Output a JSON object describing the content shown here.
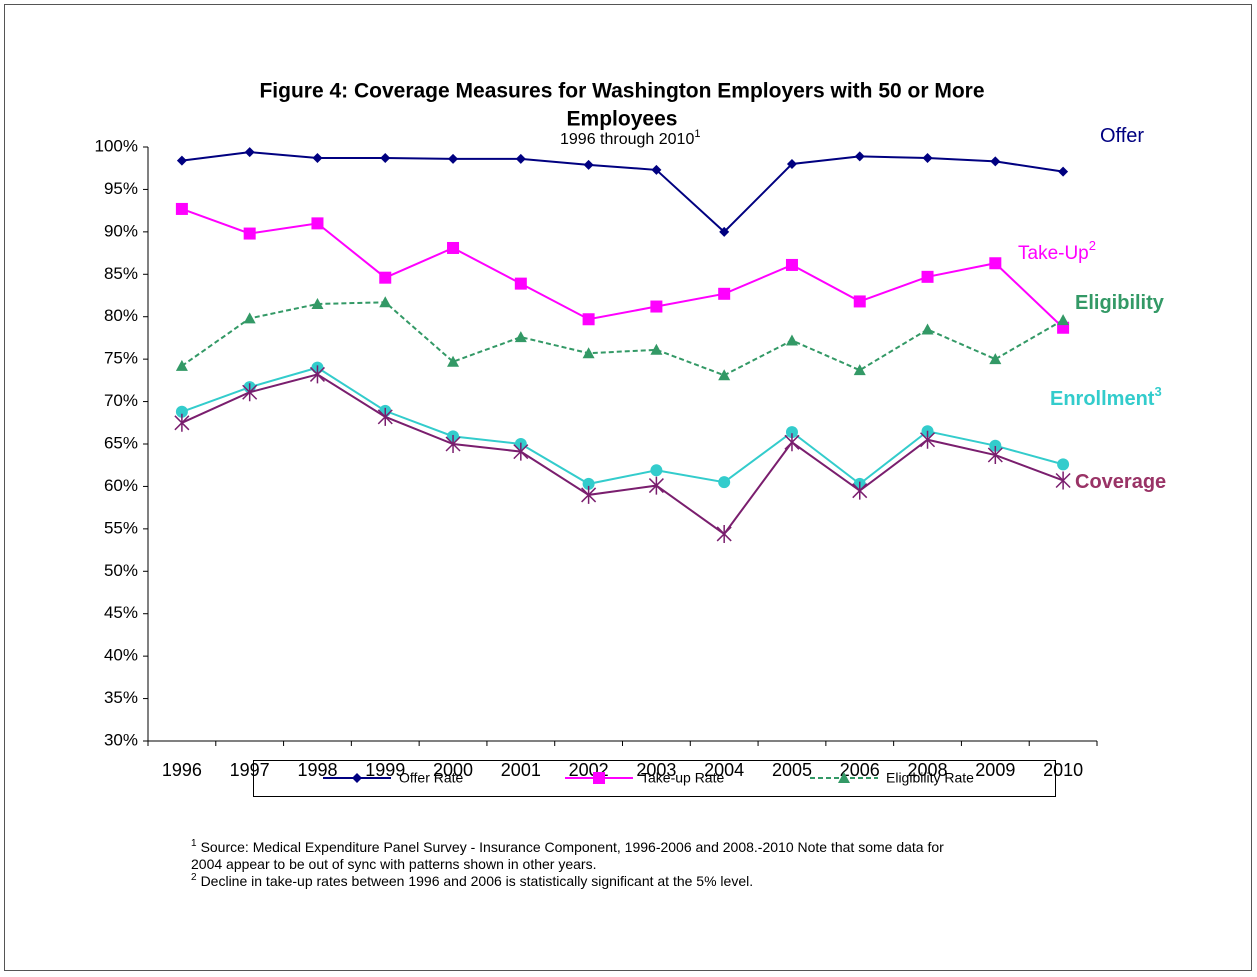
{
  "chart_data": {
    "type": "line",
    "title": [
      "Figure 4: Coverage Measures for Washington Employers with 50 or More",
      "Employees"
    ],
    "subtitle": "1996 through  2010",
    "subtitle_note": "1",
    "categories": [
      "1996",
      "1997",
      "1998",
      "1999",
      "2000",
      "2001",
      "2002",
      "2003",
      "2004",
      "2005",
      "2006",
      "2008",
      "2009",
      "2010"
    ],
    "ylim": [
      30,
      100
    ],
    "yticks": [
      {
        "value": 30,
        "label": "30%"
      },
      {
        "value": 35,
        "label": "35%"
      },
      {
        "value": 40,
        "label": "40%"
      },
      {
        "value": 45,
        "label": "45%"
      },
      {
        "value": 50,
        "label": "50%"
      },
      {
        "value": 55,
        "label": "55%"
      },
      {
        "value": 60,
        "label": "60%"
      },
      {
        "value": 65,
        "label": "65%"
      },
      {
        "value": 70,
        "label": "70%"
      },
      {
        "value": 75,
        "label": "75%"
      },
      {
        "value": 80,
        "label": "80%"
      },
      {
        "value": 85,
        "label": "85%"
      },
      {
        "value": 90,
        "label": "90%"
      },
      {
        "value": 95,
        "label": "95%"
      },
      {
        "value": 100,
        "label": "100%"
      }
    ],
    "grid": false,
    "series": [
      {
        "name": "Offer Rate",
        "label": "Offer",
        "color": "#000080",
        "label_color": "#000080",
        "marker": "diamond",
        "dash": false,
        "values": [
          98.4,
          99.4,
          98.7,
          98.7,
          98.6,
          98.6,
          97.9,
          97.3,
          90.0,
          98.0,
          98.9,
          98.7,
          98.3,
          97.1
        ]
      },
      {
        "name": "Take-up Rate",
        "label": "Take-Up",
        "label_note": "2",
        "color": "#ff00ff",
        "label_color": "#ff00ff",
        "marker": "square",
        "dash": false,
        "values": [
          92.7,
          89.8,
          91.0,
          84.6,
          88.1,
          83.9,
          79.7,
          81.2,
          82.7,
          86.1,
          81.8,
          84.7,
          86.3,
          78.7
        ]
      },
      {
        "name": "Eligibility Rate",
        "label": "Eligibility",
        "color": "#339966",
        "label_color": "#339966",
        "marker": "triangle",
        "dash": true,
        "values": [
          74.2,
          79.8,
          81.5,
          81.7,
          74.7,
          77.6,
          75.7,
          76.1,
          73.1,
          77.2,
          73.7,
          78.5,
          75.0,
          79.6
        ]
      },
      {
        "label": "Enrollment",
        "label_note": "3",
        "color": "#33cccc",
        "label_color": "#33cccc",
        "marker": "circle",
        "dash": false,
        "values": [
          68.8,
          71.7,
          74.0,
          68.9,
          65.9,
          65.0,
          60.3,
          61.9,
          60.5,
          66.4,
          60.3,
          66.5,
          64.8,
          62.6
        ]
      },
      {
        "label": "Coverage",
        "color": "#7a1e6e",
        "label_color": "#993366",
        "marker": "star",
        "dash": false,
        "values": [
          67.5,
          71.1,
          73.2,
          68.2,
          65.0,
          64.1,
          59.0,
          60.1,
          54.4,
          65.2,
          59.5,
          65.5,
          63.7,
          60.7
        ]
      }
    ],
    "footnotes": [
      {
        "note": "1",
        "lines": [
          "Source:  Medical Expenditure Panel Survey - Insurance Component, 1996-2006 and 2008.-2010  Note that some data for",
          "2004 appear to be out of sync with patterns shown in other years."
        ]
      },
      {
        "note": "2",
        "lines": [
          "Decline in take-up rates between 1996 and 2006 is statistically significant at the 5% level."
        ]
      }
    ]
  }
}
